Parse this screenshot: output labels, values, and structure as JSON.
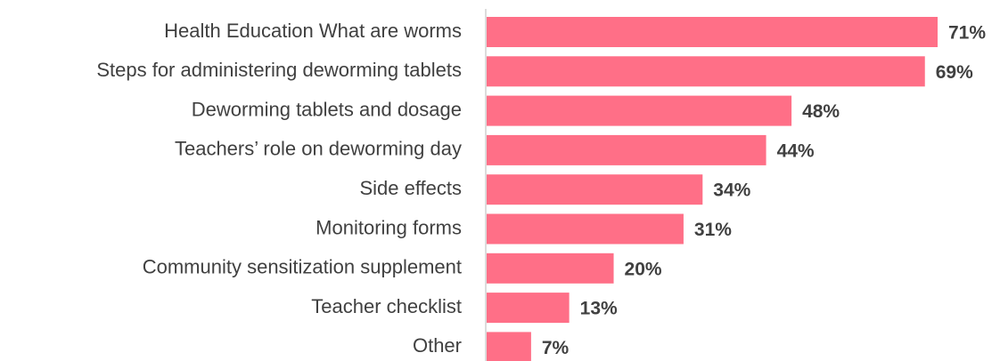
{
  "chart_data": {
    "type": "bar",
    "orientation": "horizontal",
    "categories": [
      "Health Education What are worms",
      "Steps for administering deworming tablets",
      "Deworming tablets and dosage",
      "Teachers’ role on deworming day",
      "Side effects",
      "Monitoring forms",
      "Community sensitization supplement",
      "Teacher checklist",
      "Other"
    ],
    "values": [
      71,
      69,
      48,
      44,
      34,
      31,
      20,
      13,
      7
    ],
    "value_labels": [
      "71%",
      "69%",
      "48%",
      "44%",
      "34%",
      "31%",
      "20%",
      "13%",
      "7%"
    ],
    "color": "#ff6f87"
  }
}
